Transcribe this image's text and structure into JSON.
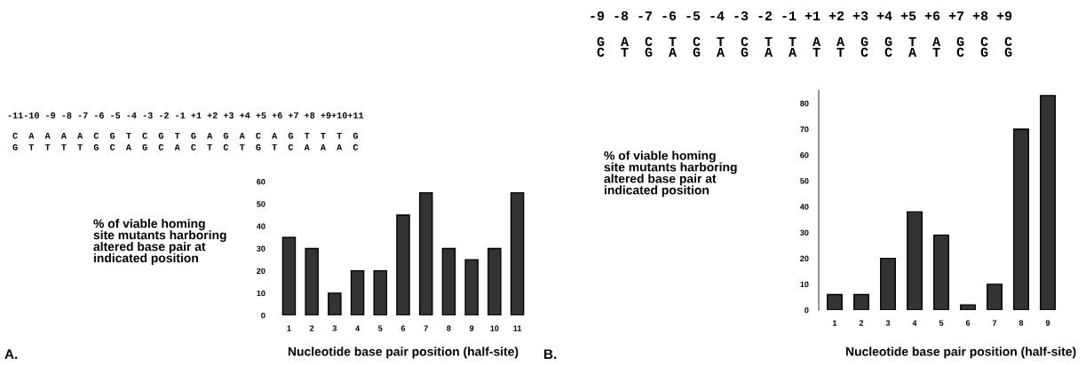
{
  "chart_data": [
    {
      "type": "bar",
      "categories": [
        "1",
        "2",
        "3",
        "4",
        "5",
        "6",
        "7",
        "8",
        "9",
        "10",
        "11"
      ],
      "values": [
        35,
        30,
        10,
        20,
        20,
        45,
        55,
        30,
        25,
        30,
        55
      ],
      "color": "#333333",
      "ylim": [
        0,
        60
      ],
      "yticks": [
        0,
        10,
        20,
        30,
        40,
        50,
        60
      ],
      "grid": false,
      "xlabel": "Nucleotide base pair position (half-site)",
      "ylabel": "% of viable homing\nsite mutants harboring\naltered base pair at\nindicated position",
      "annotations": [
        "A.",
        "-11-10 -9 -8 -7 -6 -5 -4 -3 -2 -1 +1 +2 +3 +4 +5 +6 +7 +8 +9+10+11",
        " C  A  A  A  A  C  G  T  C  G  T  G  A  G  A  C  A  G  T  T  T  G ",
        " G  T  T  T  T  G  C  A  G  C  A  C  T  C  T  G  T  C  A  A  A  C "
      ]
    },
    {
      "type": "bar",
      "categories": [
        "1",
        "2",
        "3",
        "4",
        "5",
        "6",
        "7",
        "8",
        "9"
      ],
      "values": [
        6,
        6,
        20,
        38,
        29,
        2,
        10,
        70,
        83
      ],
      "color": "#333333",
      "ylim": [
        0,
        85
      ],
      "yticks": [
        0,
        10,
        20,
        30,
        40,
        50,
        60,
        70,
        80
      ],
      "grid": false,
      "xlabel": "Nucleotide base pair position (half-site)",
      "ylabel": "% of viable homing\nsite mutants harboring\naltered base pair at\nindicated position",
      "annotations": [
        "B.",
        "-9 -8 -7 -6 -5 -4 -3 -2 -1 +1 +2 +3 +4 +5 +6 +7 +8 +9",
        " G  A  C  T  C  T  C  T  T  A  A  G  G  T  A  G  C  C ",
        " C  T  G  A  G  A  G  A  A  T  T  C  C  A  T  C  G  G "
      ]
    }
  ]
}
